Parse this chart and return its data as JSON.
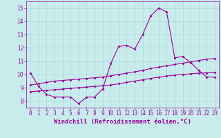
{
  "xlabel": "Windchill (Refroidissement éolien,°C)",
  "bg_color": "#c8ecec",
  "grid_color": "#a8d8d8",
  "line_color": "#990099",
  "xlim": [
    -0.5,
    23.5
  ],
  "ylim": [
    7.5,
    15.5
  ],
  "xticks": [
    0,
    1,
    2,
    3,
    4,
    5,
    6,
    7,
    8,
    9,
    10,
    11,
    12,
    13,
    14,
    15,
    16,
    17,
    18,
    19,
    20,
    21,
    22,
    23
  ],
  "yticks": [
    8,
    9,
    10,
    11,
    12,
    13,
    14,
    15
  ],
  "line1_x": [
    0,
    1,
    2,
    3,
    4,
    5,
    6,
    7,
    8,
    9,
    10,
    11,
    12,
    13,
    14,
    15,
    16,
    17,
    18,
    19,
    20,
    21,
    22,
    23
  ],
  "line1_y": [
    10.1,
    9.1,
    8.5,
    8.3,
    8.3,
    8.3,
    7.8,
    8.3,
    8.3,
    8.9,
    10.8,
    12.1,
    12.2,
    11.9,
    13.0,
    14.4,
    15.0,
    14.7,
    11.25,
    11.35,
    10.9,
    10.3,
    9.8,
    9.8
  ],
  "line2_x": [
    0,
    1,
    2,
    3,
    4,
    5,
    6,
    7,
    8,
    9,
    10,
    11,
    12,
    13,
    14,
    15,
    16,
    17,
    18,
    19,
    20,
    21,
    22,
    23
  ],
  "line2_y": [
    9.2,
    9.3,
    9.4,
    9.5,
    9.55,
    9.6,
    9.65,
    9.7,
    9.75,
    9.8,
    9.9,
    10.0,
    10.1,
    10.2,
    10.3,
    10.45,
    10.55,
    10.65,
    10.75,
    10.85,
    10.95,
    11.05,
    11.15,
    11.2
  ],
  "line3_x": [
    0,
    1,
    2,
    3,
    4,
    5,
    6,
    7,
    8,
    9,
    10,
    11,
    12,
    13,
    14,
    15,
    16,
    17,
    18,
    19,
    20,
    21,
    22,
    23
  ],
  "line3_y": [
    8.7,
    8.75,
    8.8,
    8.85,
    8.9,
    8.95,
    9.0,
    9.05,
    9.1,
    9.15,
    9.2,
    9.3,
    9.4,
    9.5,
    9.6,
    9.7,
    9.8,
    9.88,
    9.95,
    10.0,
    10.05,
    10.1,
    10.12,
    10.14
  ],
  "marker": "D",
  "marker_size": 2.0,
  "line_width": 0.8,
  "tick_fontsize": 5.5,
  "xlabel_fontsize": 6.5
}
